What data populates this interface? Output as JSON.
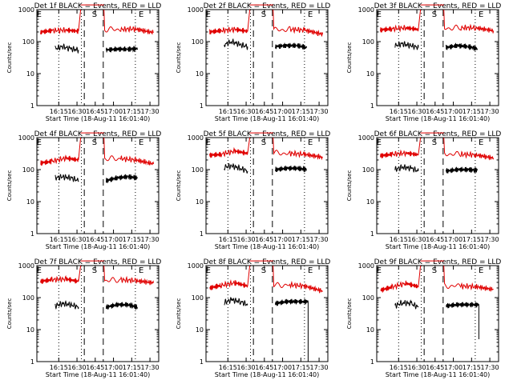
{
  "chart_data": [
    {
      "type": "line",
      "title": "Det 1f BLACK = Events, RED = LLD",
      "xlabel": "Start Time (18-Aug-11 16:01:40)",
      "ylabel": "Counts/sec",
      "yscale": "log",
      "ylim": [
        1,
        1000
      ],
      "ytick_labels": [
        "1",
        "10",
        "100",
        "1000"
      ],
      "xtick_labels": [
        "16:15",
        "16:30",
        "16:45",
        "17:00",
        "17:15",
        "17:30"
      ],
      "markers": [
        "E",
        "S",
        "E"
      ],
      "series": [
        {
          "color": "#000000",
          "segments": [
            [
              [
                16.2,
                60
              ],
              [
                16.3,
                70
              ],
              [
                16.4,
                60
              ],
              [
                16.52,
                55
              ]
            ],
            [
              [
                16.9,
                55
              ],
              [
                17.05,
                58
              ],
              [
                17.2,
                58
              ],
              [
                17.33,
                60
              ]
            ]
          ]
        },
        {
          "color": "#e00000",
          "segments": [
            [
              [
                16.0,
                200
              ],
              [
                16.15,
                220
              ],
              [
                16.35,
                230
              ],
              [
                16.52,
                210
              ]
            ],
            [
              [
                16.88,
                240
              ],
              [
                17.1,
                240
              ],
              [
                17.3,
                250
              ],
              [
                17.55,
                190
              ]
            ]
          ]
        }
      ]
    },
    {
      "type": "line",
      "title": "Det 2f BLACK = Events, RED = LLD",
      "xlabel": "Start Time (18-Aug-11 16:01:40)",
      "ylabel": "Counts/sec",
      "yscale": "log",
      "ylim": [
        1,
        1000
      ],
      "ytick_labels": [
        "1",
        "10",
        "100",
        "1000"
      ],
      "xtick_labels": [
        "16:15",
        "16:30",
        "16:45",
        "17:00",
        "17:15",
        "17:30"
      ],
      "markers": [
        "E",
        "S",
        "E"
      ],
      "series": [
        {
          "color": "#000000",
          "segments": [
            [
              [
                16.2,
                80
              ],
              [
                16.3,
                100
              ],
              [
                16.42,
                80
              ],
              [
                16.52,
                70
              ]
            ],
            [
              [
                16.9,
                70
              ],
              [
                17.05,
                75
              ],
              [
                17.2,
                75
              ],
              [
                17.33,
                65
              ]
            ]
          ]
        },
        {
          "color": "#e00000",
          "segments": [
            [
              [
                16.0,
                200
              ],
              [
                16.15,
                220
              ],
              [
                16.35,
                240
              ],
              [
                16.52,
                210
              ]
            ],
            [
              [
                16.88,
                230
              ],
              [
                17.1,
                240
              ],
              [
                17.3,
                230
              ],
              [
                17.55,
                170
              ]
            ]
          ]
        }
      ]
    },
    {
      "type": "line",
      "title": "Det 3f BLACK = Events, RED = LLD",
      "xlabel": "Start Time (18-Aug-11 16:01:40)",
      "ylabel": "Counts/sec",
      "yscale": "log",
      "ylim": [
        1,
        1000
      ],
      "ytick_labels": [
        "1",
        "10",
        "100",
        "1000"
      ],
      "xtick_labels": [
        "16:15",
        "16:30",
        "16:45",
        "17:00",
        "17:15",
        "17:30"
      ],
      "markers": [
        "E",
        "S",
        "E"
      ],
      "series": [
        {
          "color": "#000000",
          "segments": [
            [
              [
                16.2,
                75
              ],
              [
                16.3,
                85
              ],
              [
                16.42,
                75
              ],
              [
                16.52,
                65
              ]
            ],
            [
              [
                16.9,
                65
              ],
              [
                17.05,
                75
              ],
              [
                17.2,
                70
              ],
              [
                17.33,
                60
              ]
            ]
          ]
        },
        {
          "color": "#e00000",
          "segments": [
            [
              [
                16.0,
                230
              ],
              [
                16.15,
                250
              ],
              [
                16.35,
                270
              ],
              [
                16.52,
                240
              ]
            ],
            [
              [
                16.88,
                260
              ],
              [
                17.1,
                270
              ],
              [
                17.3,
                270
              ],
              [
                17.55,
                220
              ]
            ]
          ]
        }
      ]
    },
    {
      "type": "line",
      "title": "Det 4f BLACK = Events, RED = LLD",
      "xlabel": "Start Time (18-Aug-11 16:01:40)",
      "ylabel": "Counts/sec",
      "yscale": "log",
      "ylim": [
        1,
        1000
      ],
      "ytick_labels": [
        "1",
        "10",
        "100",
        "1000"
      ],
      "xtick_labels": [
        "16:15",
        "16:30",
        "16:45",
        "17:00",
        "17:15",
        "17:30"
      ],
      "markers": [
        "E",
        "S",
        "E"
      ],
      "series": [
        {
          "color": "#000000",
          "segments": [
            [
              [
                16.2,
                55
              ],
              [
                16.3,
                60
              ],
              [
                16.42,
                55
              ],
              [
                16.52,
                45
              ]
            ],
            [
              [
                16.9,
                45
              ],
              [
                17.05,
                55
              ],
              [
                17.2,
                60
              ],
              [
                17.33,
                55
              ]
            ]
          ]
        },
        {
          "color": "#e00000",
          "segments": [
            [
              [
                16.0,
                160
              ],
              [
                16.15,
                180
              ],
              [
                16.35,
                230
              ],
              [
                16.52,
                200
              ]
            ],
            [
              [
                16.88,
                220
              ],
              [
                17.1,
                220
              ],
              [
                17.3,
                200
              ],
              [
                17.55,
                150
              ]
            ]
          ]
        }
      ]
    },
    {
      "type": "line",
      "title": "Det 5f BLACK = Events, RED = LLD",
      "xlabel": "Start Time (18-Aug-11 16:01:40)",
      "ylabel": "Counts/sec",
      "yscale": "log",
      "ylim": [
        1,
        1000
      ],
      "ytick_labels": [
        "1",
        "10",
        "100",
        "1000"
      ],
      "xtick_labels": [
        "16:15",
        "16:30",
        "16:45",
        "17:00",
        "17:15",
        "17:30"
      ],
      "markers": [
        "E",
        "S",
        "E"
      ],
      "series": [
        {
          "color": "#000000",
          "segments": [
            [
              [
                16.2,
                120
              ],
              [
                16.3,
                130
              ],
              [
                16.42,
                110
              ],
              [
                16.52,
                90
              ]
            ],
            [
              [
                16.9,
                100
              ],
              [
                17.05,
                110
              ],
              [
                17.2,
                110
              ],
              [
                17.33,
                100
              ]
            ]
          ]
        },
        {
          "color": "#e00000",
          "segments": [
            [
              [
                16.0,
                280
              ],
              [
                16.15,
                300
              ],
              [
                16.35,
                380
              ],
              [
                16.52,
                320
              ]
            ],
            [
              [
                16.88,
                330
              ],
              [
                17.1,
                320
              ],
              [
                17.3,
                300
              ],
              [
                17.55,
                240
              ]
            ]
          ]
        }
      ]
    },
    {
      "type": "line",
      "title": "Det 6f BLACK = Events, RED = LLD",
      "xlabel": "Start Time (18-Aug-11 16:01:40)",
      "ylabel": "Counts/sec",
      "yscale": "log",
      "ylim": [
        1,
        1000
      ],
      "ytick_labels": [
        "1",
        "10",
        "100",
        "1000"
      ],
      "xtick_labels": [
        "16:15",
        "16:30",
        "16:45",
        "17:00",
        "17:15",
        "17:30"
      ],
      "markers": [
        "E",
        "S",
        "E"
      ],
      "series": [
        {
          "color": "#000000",
          "segments": [
            [
              [
                16.2,
                100
              ],
              [
                16.3,
                120
              ],
              [
                16.42,
                110
              ],
              [
                16.52,
                90
              ]
            ],
            [
              [
                16.9,
                90
              ],
              [
                17.05,
                100
              ],
              [
                17.2,
                100
              ],
              [
                17.33,
                95
              ]
            ]
          ]
        },
        {
          "color": "#e00000",
          "segments": [
            [
              [
                16.0,
                270
              ],
              [
                16.15,
                300
              ],
              [
                16.35,
                330
              ],
              [
                16.52,
                290
              ]
            ],
            [
              [
                16.88,
                310
              ],
              [
                17.1,
                300
              ],
              [
                17.3,
                290
              ],
              [
                17.55,
                230
              ]
            ]
          ]
        }
      ]
    },
    {
      "type": "line",
      "title": "Det 7f BLACK = Events, RED = LLD",
      "xlabel": "Start Time (18-Aug-11 16:01:40)",
      "ylabel": "Counts/sec",
      "yscale": "log",
      "ylim": [
        1,
        1000
      ],
      "ytick_labels": [
        "1",
        "10",
        "100",
        "1000"
      ],
      "xtick_labels": [
        "16:15",
        "16:30",
        "16:45",
        "17:00",
        "17:15",
        "17:30"
      ],
      "markers": [
        "E",
        "S",
        "E"
      ],
      "series": [
        {
          "color": "#000000",
          "segments": [
            [
              [
                16.2,
                55
              ],
              [
                16.3,
                65
              ],
              [
                16.42,
                60
              ],
              [
                16.52,
                50
              ]
            ],
            [
              [
                16.9,
                50
              ],
              [
                17.05,
                60
              ],
              [
                17.2,
                60
              ],
              [
                17.33,
                50
              ]
            ]
          ]
        },
        {
          "color": "#e00000",
          "segments": [
            [
              [
                16.0,
                320
              ],
              [
                16.15,
                360
              ],
              [
                16.35,
                380
              ],
              [
                16.52,
                320
              ]
            ],
            [
              [
                16.88,
                340
              ],
              [
                17.1,
                360
              ],
              [
                17.3,
                340
              ],
              [
                17.55,
                290
              ]
            ]
          ]
        }
      ]
    },
    {
      "type": "line",
      "title": "Det 8f BLACK = Events, RED = LLD",
      "xlabel": "Start Time (18-Aug-11 16:01:40)",
      "ylabel": "Counts/sec",
      "yscale": "log",
      "ylim": [
        1,
        1000
      ],
      "ytick_labels": [
        "1",
        "10",
        "100",
        "1000"
      ],
      "xtick_labels": [
        "16:15",
        "16:30",
        "16:45",
        "17:00",
        "17:15",
        "17:30"
      ],
      "markers": [
        "E",
        "S",
        "E"
      ],
      "series": [
        {
          "color": "#000000",
          "segments": [
            [
              [
                16.2,
                70
              ],
              [
                16.3,
                85
              ],
              [
                16.42,
                75
              ],
              [
                16.52,
                60
              ]
            ],
            [
              [
                16.9,
                65
              ],
              [
                17.05,
                75
              ],
              [
                17.2,
                75
              ],
              [
                17.35,
                75
              ],
              [
                17.35,
                1
              ]
            ]
          ]
        },
        {
          "color": "#e00000",
          "segments": [
            [
              [
                16.0,
                200
              ],
              [
                16.15,
                240
              ],
              [
                16.35,
                290
              ],
              [
                16.52,
                230
              ]
            ],
            [
              [
                16.88,
                240
              ],
              [
                17.1,
                250
              ],
              [
                17.3,
                230
              ],
              [
                17.55,
                160
              ]
            ]
          ]
        }
      ]
    },
    {
      "type": "line",
      "title": "Det 9f BLACK = Events, RED = LLD",
      "xlabel": "Start Time (18-Aug-11 16:01:40)",
      "ylabel": "Counts/sec",
      "yscale": "log",
      "ylim": [
        1,
        1000
      ],
      "ytick_labels": [
        "1",
        "10",
        "100",
        "1000"
      ],
      "xtick_labels": [
        "16:15",
        "16:30",
        "16:45",
        "17:00",
        "17:15",
        "17:30"
      ],
      "markers": [
        "E",
        "S",
        "E"
      ],
      "series": [
        {
          "color": "#000000",
          "segments": [
            [
              [
                16.2,
                55
              ],
              [
                16.3,
                70
              ],
              [
                16.42,
                65
              ],
              [
                16.52,
                50
              ]
            ],
            [
              [
                16.9,
                55
              ],
              [
                17.05,
                60
              ],
              [
                17.2,
                60
              ],
              [
                17.35,
                60
              ],
              [
                17.35,
                5
              ]
            ]
          ]
        },
        {
          "color": "#e00000",
          "segments": [
            [
              [
                16.0,
                170
              ],
              [
                16.15,
                210
              ],
              [
                16.35,
                280
              ],
              [
                16.52,
                220
              ]
            ],
            [
              [
                16.88,
                230
              ],
              [
                17.1,
                230
              ],
              [
                17.3,
                220
              ],
              [
                17.55,
                180
              ]
            ]
          ]
        }
      ]
    }
  ]
}
